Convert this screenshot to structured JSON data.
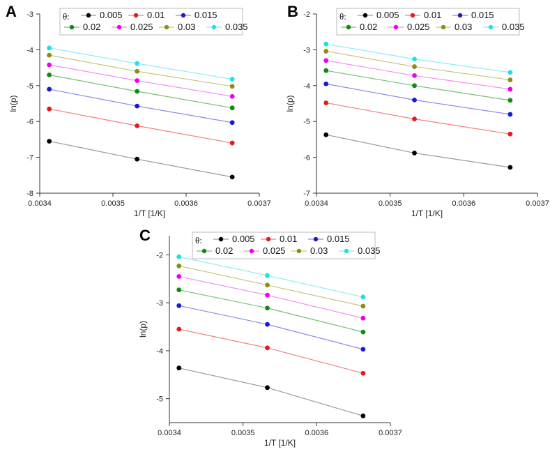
{
  "chart_data": [
    {
      "panel": "A",
      "type": "line",
      "xlabel": "1/T [1/K]",
      "ylabel": "ln(p)",
      "xlim": [
        0.0034,
        0.0037
      ],
      "ylim": [
        -8,
        -3
      ],
      "xticks": [
        0.0034,
        0.0035,
        0.0036,
        0.0037
      ],
      "xtick_labels": [
        "0.0034",
        "0.0035",
        "0.0036",
        "0.0037"
      ],
      "yticks": [
        -8,
        -7,
        -6,
        -5,
        -4,
        -3
      ],
      "ytick_labels": [
        "-8",
        "-7",
        "-6",
        "-5",
        "-4",
        "-3"
      ],
      "legend_title": "θ:",
      "x": [
        0.003413,
        0.003533,
        0.003663
      ],
      "series": [
        {
          "name": "0.005",
          "color": "#000000",
          "line_color": "#9a9a9a",
          "values": [
            -6.55,
            -7.05,
            -7.55
          ]
        },
        {
          "name": "0.01",
          "color": "#e8191b",
          "line_color": "#f08080",
          "values": [
            -5.65,
            -6.12,
            -6.6
          ]
        },
        {
          "name": "0.015",
          "color": "#1a1ad6",
          "line_color": "#8a8ae6",
          "values": [
            -5.1,
            -5.57,
            -6.03
          ]
        },
        {
          "name": "0.02",
          "color": "#118a11",
          "line_color": "#72c272",
          "values": [
            -4.7,
            -5.16,
            -5.62
          ]
        },
        {
          "name": "0.025",
          "color": "#f000f0",
          "line_color": "#f38ef3",
          "values": [
            -4.42,
            -4.86,
            -5.3
          ]
        },
        {
          "name": "0.03",
          "color": "#8c8c16",
          "line_color": "#c6c67a",
          "values": [
            -4.15,
            -4.6,
            -5.02
          ]
        },
        {
          "name": "0.035",
          "color": "#22e0e0",
          "line_color": "#8ceded",
          "values": [
            -3.95,
            -4.38,
            -4.82
          ]
        }
      ]
    },
    {
      "panel": "B",
      "type": "line",
      "xlabel": "1/T [1/K]",
      "ylabel": "ln(p)",
      "xlim": [
        0.0034,
        0.0037
      ],
      "ylim": [
        -7,
        -2
      ],
      "xticks": [
        0.0034,
        0.0035,
        0.0036,
        0.0037
      ],
      "xtick_labels": [
        "0.0034",
        "0.0035",
        "0.0036",
        "0.0037"
      ],
      "yticks": [
        -7,
        -6,
        -5,
        -4,
        -3,
        -2
      ],
      "ytick_labels": [
        "-7",
        "-6",
        "-5",
        "-4",
        "-3",
        "-2"
      ],
      "legend_title": "θ:",
      "x": [
        0.003413,
        0.003533,
        0.003663
      ],
      "series": [
        {
          "name": "0.005",
          "color": "#000000",
          "line_color": "#9a9a9a",
          "values": [
            -5.37,
            -5.88,
            -6.28
          ]
        },
        {
          "name": "0.01",
          "color": "#e8191b",
          "line_color": "#f08080",
          "values": [
            -4.48,
            -4.93,
            -5.35
          ]
        },
        {
          "name": "0.015",
          "color": "#1a1ad6",
          "line_color": "#8a8ae6",
          "values": [
            -3.95,
            -4.4,
            -4.8
          ]
        },
        {
          "name": "0.02",
          "color": "#118a11",
          "line_color": "#72c272",
          "values": [
            -3.58,
            -4.0,
            -4.41
          ]
        },
        {
          "name": "0.025",
          "color": "#f000f0",
          "line_color": "#f38ef3",
          "values": [
            -3.3,
            -3.72,
            -4.1
          ]
        },
        {
          "name": "0.03",
          "color": "#8c8c16",
          "line_color": "#c6c67a",
          "values": [
            -3.04,
            -3.47,
            -3.84
          ]
        },
        {
          "name": "0.035",
          "color": "#22e0e0",
          "line_color": "#8ceded",
          "values": [
            -2.84,
            -3.26,
            -3.63
          ]
        }
      ]
    },
    {
      "panel": "C",
      "type": "line",
      "xlabel": "1/T [1/K]",
      "ylabel": "ln(p)",
      "xlim": [
        0.0034,
        0.0037
      ],
      "ylim": [
        -5.5,
        -1.6
      ],
      "xticks": [
        0.0034,
        0.0035,
        0.0036,
        0.0037
      ],
      "xtick_labels": [
        "0.0034",
        "0.0035",
        "0.0036",
        "0.0037"
      ],
      "yticks": [
        -5,
        -4,
        -3,
        -2
      ],
      "ytick_labels": [
        "-5",
        "-4",
        "-3",
        "-2"
      ],
      "legend_title": "θ:",
      "x": [
        0.003413,
        0.003533,
        0.003663
      ],
      "series": [
        {
          "name": "0.005",
          "color": "#000000",
          "line_color": "#9a9a9a",
          "values": [
            -4.36,
            -4.77,
            -5.36
          ]
        },
        {
          "name": "0.01",
          "color": "#e8191b",
          "line_color": "#f08080",
          "values": [
            -3.55,
            -3.94,
            -4.47
          ]
        },
        {
          "name": "0.015",
          "color": "#1a1ad6",
          "line_color": "#8a8ae6",
          "values": [
            -3.06,
            -3.45,
            -3.97
          ]
        },
        {
          "name": "0.02",
          "color": "#118a11",
          "line_color": "#72c272",
          "values": [
            -2.73,
            -3.11,
            -3.61
          ]
        },
        {
          "name": "0.025",
          "color": "#f000f0",
          "line_color": "#f38ef3",
          "values": [
            -2.45,
            -2.84,
            -3.32
          ]
        },
        {
          "name": "0.03",
          "color": "#8c8c16",
          "line_color": "#c6c67a",
          "values": [
            -2.23,
            -2.63,
            -3.07
          ]
        },
        {
          "name": "0.035",
          "color": "#22e0e0",
          "line_color": "#8ceded",
          "values": [
            -2.04,
            -2.43,
            -2.88
          ]
        }
      ]
    }
  ]
}
